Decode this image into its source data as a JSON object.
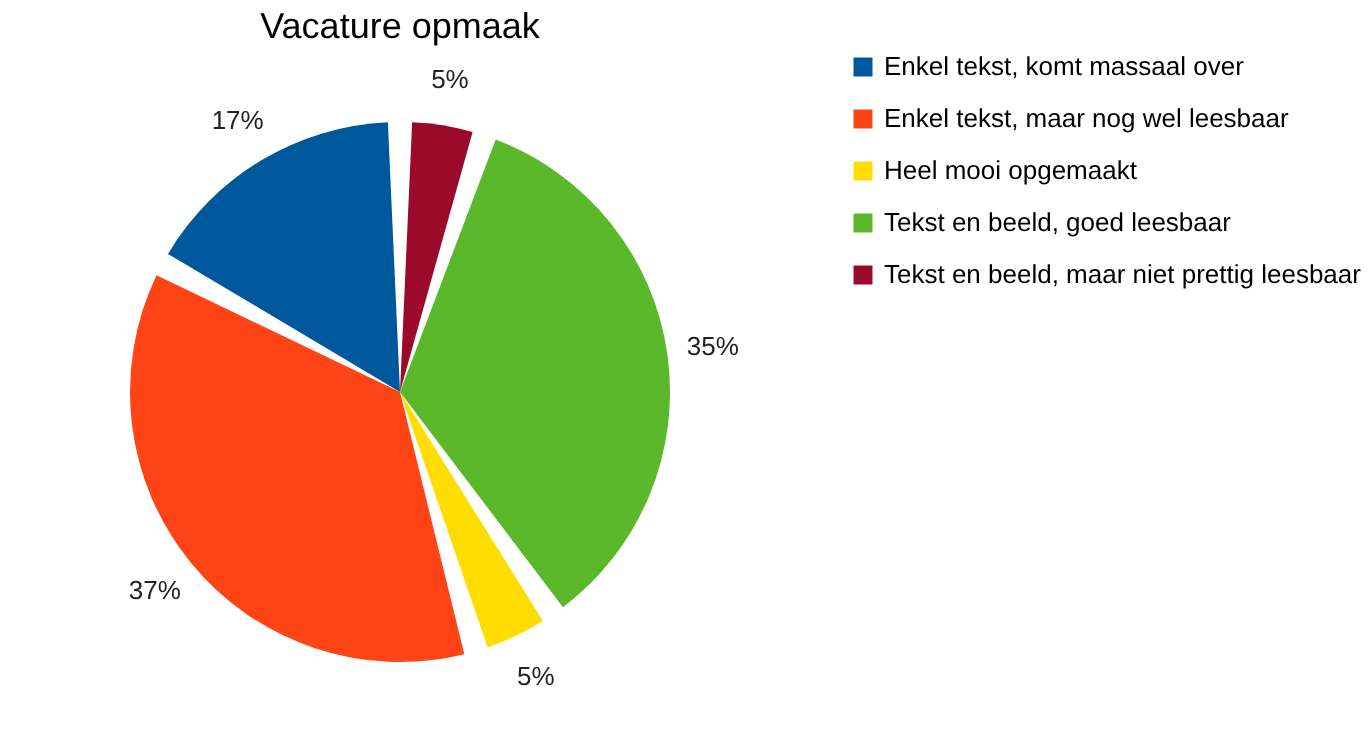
{
  "chart_data": {
    "type": "pie",
    "title": "Vacature opmaak",
    "categories": [
      "Enkel tekst, komt massaal over",
      "Enkel tekst, maar nog wel leesbaar",
      "Heel mooi opgemaakt",
      "Tekst en beeld, goed leesbaar",
      "Tekst en beeld, maar niet prettig leesbaar"
    ],
    "values": [
      17,
      37,
      5,
      35,
      5
    ],
    "colors": [
      "#00589c",
      "#ff4415",
      "#ffdd00",
      "#5cb82b",
      "#9b0a2b"
    ],
    "value_labels": [
      "17%",
      "37%",
      "5%",
      "35%",
      "5%"
    ],
    "legend": "right"
  }
}
